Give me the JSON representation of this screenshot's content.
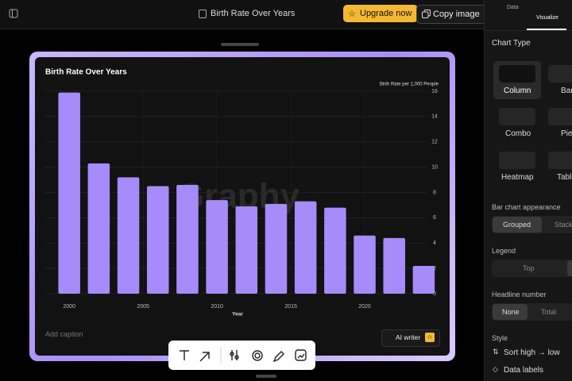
{
  "ui": {
    "app_title": "Birth Rate Over Years",
    "upgrade": "Upgrade now",
    "copy": "Copy image",
    "tabs": [
      "Data",
      "Visualize"
    ],
    "watermark": "Graphy",
    "caption": "Add caption",
    "ai_writer": "AI writer",
    "panel": {
      "chart_type": "Chart Type",
      "types": [
        "Column",
        "Bar",
        "Combo",
        "Pie",
        "Heatmap",
        "Table"
      ],
      "appearance": "Bar chart appearance",
      "appearance_options": [
        "Grouped",
        "Stacked"
      ],
      "legend": "Legend",
      "legend_options": [
        "Top"
      ],
      "headline": "Headline number",
      "headline_options": [
        "None",
        "Total"
      ],
      "style": "Style",
      "style_options": [
        "Sort high → low",
        "Data labels"
      ]
    }
  },
  "chart_data": {
    "type": "bar",
    "title": "Birth Rate Over Years",
    "y_label": "Birth Rate per 1,000 People",
    "x_label": "Year",
    "x": [
      2000,
      2002,
      2004,
      2006,
      2008,
      2010,
      2012,
      2014,
      2016,
      2018,
      2020,
      2022,
      2024
    ],
    "values": [
      15.9,
      10.3,
      9.2,
      8.5,
      8.6,
      7.4,
      6.9,
      7.1,
      7.3,
      6.8,
      4.6,
      4.4,
      2.2
    ],
    "color": "#a78bfa",
    "xlim": [
      1998,
      2025
    ],
    "xticks": [
      2000,
      2005,
      2010,
      2015,
      2020
    ],
    "ylim": [
      0,
      16
    ],
    "yticks": [
      0,
      2,
      4,
      6,
      8,
      10,
      12,
      14,
      16
    ],
    "grid": true
  }
}
